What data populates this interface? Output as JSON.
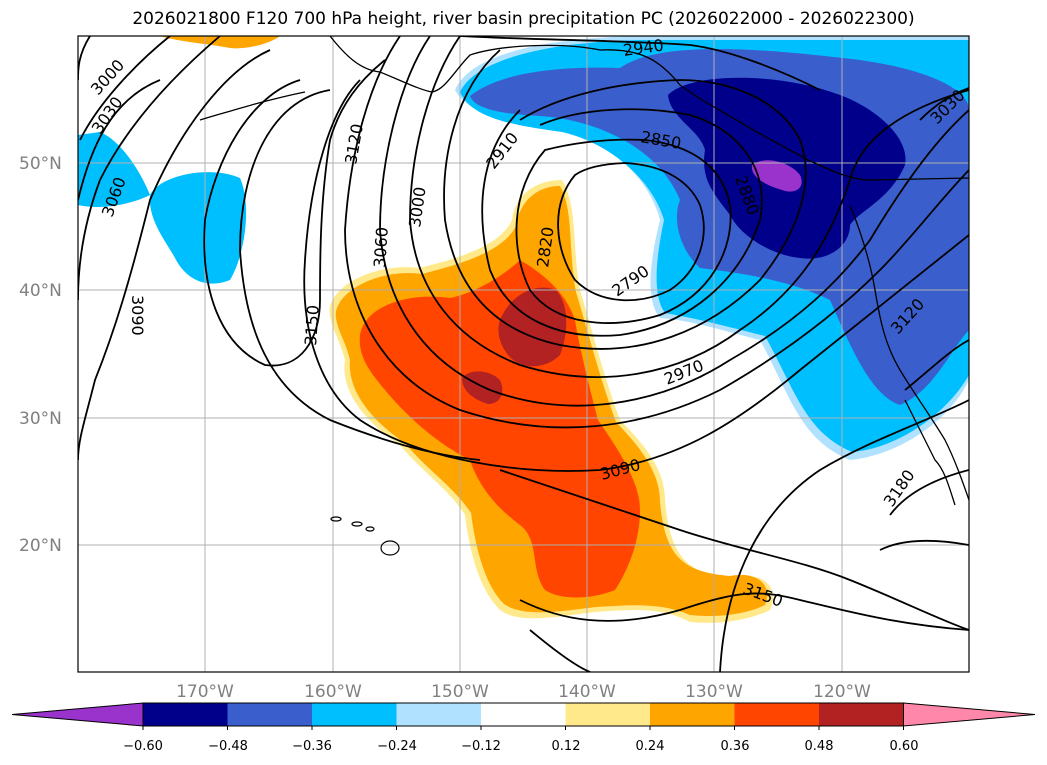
{
  "title": "2026021800 F120 700 hPa height, river basin precipitation PC (2026022000 - 2026022300)",
  "map": {
    "lon_range": [
      -180,
      -110
    ],
    "lat_range": [
      10,
      60
    ],
    "lon_ticks": [
      -170,
      -160,
      -150,
      -140,
      -130,
      -120
    ],
    "lat_ticks": [
      20,
      30,
      40,
      50
    ],
    "lon_labels": [
      "170°W",
      "160°W",
      "150°W",
      "140°W",
      "130°W",
      "120°W"
    ],
    "lat_labels": [
      "20°N",
      "30°N",
      "40°N",
      "50°N"
    ],
    "grid": true
  },
  "contour_labels": [
    "3000",
    "3030",
    "3060",
    "3090",
    "3120",
    "3000",
    "3060",
    "3150",
    "2910",
    "2940",
    "2850",
    "2820",
    "2790",
    "2970",
    "3090",
    "3150",
    "3120",
    "3030",
    "3180",
    "2880"
  ],
  "colorbar": {
    "tick_labels": [
      "−0.60",
      "−0.48",
      "−0.36",
      "−0.24",
      "−0.12",
      "0.12",
      "0.24",
      "0.36",
      "0.48",
      "0.60"
    ],
    "colors": [
      "#9933cc",
      "#00008b",
      "#3a5fcd",
      "#00bfff",
      "#b0e2ff",
      "#ffffff",
      "#ffe98a",
      "#ffa500",
      "#ff4500",
      "#b22222",
      "#ff88aa"
    ],
    "extend": "both"
  },
  "shading_colors": {
    "neg_extreme": "#9933cc",
    "neg_048": "#00008b",
    "neg_036": "#3a5fcd",
    "neg_024": "#00bfff",
    "neg_012": "#b0e2ff",
    "pos_012": "#ffe98a",
    "pos_024": "#ffa500",
    "pos_036": "#ff4500",
    "pos_048": "#b22222"
  }
}
